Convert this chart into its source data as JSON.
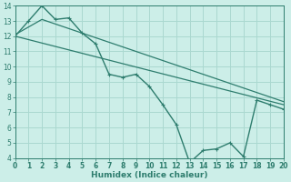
{
  "xlabel": "Humidex (Indice chaleur)",
  "background_color": "#cceee8",
  "grid_color": "#aad8d0",
  "line_color": "#2e7d6e",
  "line1_x": [
    0,
    1,
    2,
    3,
    4,
    5,
    6,
    7,
    8,
    9,
    10,
    11,
    12,
    13,
    14,
    15,
    16,
    17,
    18,
    19,
    20
  ],
  "line1_y": [
    12.0,
    13.0,
    14.0,
    13.1,
    13.2,
    12.2,
    11.5,
    9.5,
    9.3,
    9.5,
    8.7,
    7.5,
    6.2,
    3.7,
    4.5,
    4.6,
    5.0,
    4.1,
    7.8,
    7.5,
    7.2
  ],
  "line2_x": [
    0,
    20
  ],
  "line2_y": [
    12.0,
    7.5
  ],
  "line3_x": [
    0,
    2,
    20
  ],
  "line3_y": [
    12.1,
    13.1,
    7.7
  ],
  "ylim": [
    4,
    14
  ],
  "xlim": [
    0,
    20
  ],
  "yticks": [
    4,
    5,
    6,
    7,
    8,
    9,
    10,
    11,
    12,
    13,
    14
  ],
  "xticks": [
    0,
    1,
    2,
    3,
    4,
    5,
    6,
    7,
    8,
    9,
    10,
    11,
    12,
    13,
    14,
    15,
    16,
    17,
    18,
    19,
    20
  ]
}
